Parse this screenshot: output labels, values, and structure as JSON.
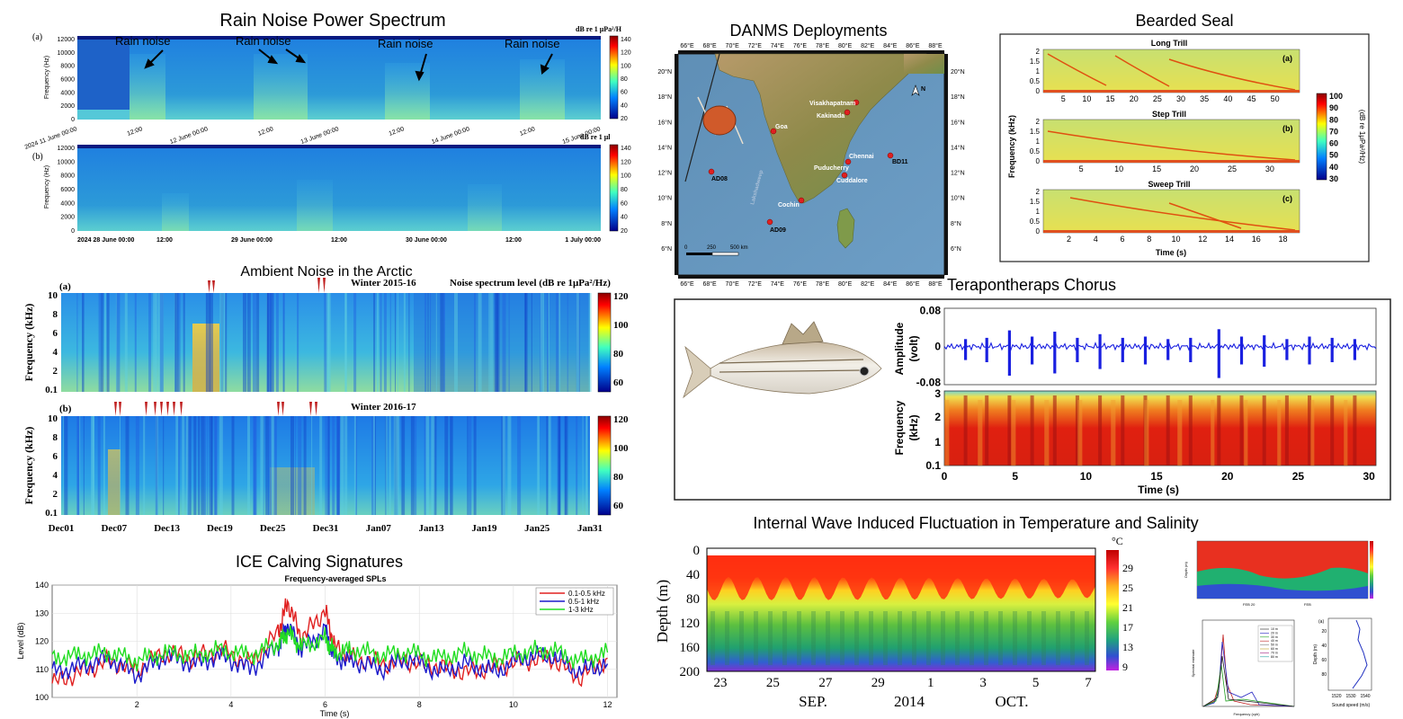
{
  "panels": {
    "rain": {
      "title": "Rain Noise Power Spectrum",
      "a_label": "(a)",
      "b_label": "(b)",
      "cbar_a": "dB re 1 μPa²/H",
      "cbar_b": "dB re 1 μl",
      "ylabel": "Frequency (Hz)",
      "annotation": "Rain noise",
      "yticks": [
        "12000",
        "10000",
        "8000",
        "6000",
        "4000",
        "2000",
        "0"
      ],
      "cticks": [
        "140",
        "120",
        "100",
        "80",
        "60",
        "40",
        "20"
      ],
      "xticks_a": [
        "2024 11 June 00:00",
        "12:00",
        "12 June 00:00",
        "12:00",
        "13 June 00:00",
        "12:00",
        "14 June 00:00",
        "12:00",
        "15 June 00:00"
      ],
      "xticks_b": [
        "2024 28 June 00:00",
        "12:00",
        "29 June 00:00",
        "12:00",
        "30 June 00:00",
        "12:00",
        "1 July 00:00"
      ]
    },
    "arctic": {
      "title": "Ambient Noise in the Arctic",
      "a_label": "(a)",
      "b_label": "(b)",
      "winter_a": "Winter 2015-16",
      "winter_b": "Winter 2016-17",
      "cbar_label": "Noise spectrum level (dB re 1μPa²/Hz)",
      "ylabel": "Frequency (kHz)",
      "yticks": [
        "10",
        "8",
        "6",
        "4",
        "2",
        "0.1"
      ],
      "cticks": [
        "120",
        "100",
        "80",
        "60"
      ],
      "xticks": [
        "Dec01",
        "Dec07",
        "Dec13",
        "Dec19",
        "Dec25",
        "Dec31",
        "Jan07",
        "Jan13",
        "Jan19",
        "Jan25",
        "Jan31"
      ]
    },
    "ice": {
      "title": "ICE Calving Signatures",
      "chart_title": "Frequency-averaged SPLs",
      "ylabel": "Level (dB)",
      "xlabel": "Time (s)",
      "yticks": [
        "140",
        "130",
        "120",
        "110",
        "100"
      ],
      "xticks": [
        "2",
        "4",
        "6",
        "8",
        "10",
        "12"
      ],
      "legend": [
        "0.1-0.5 kHz",
        "0.5-1 kHz",
        "1-3 kHz"
      ]
    },
    "danms": {
      "title": "DANMS Deployments",
      "lon_ticks": [
        "66°E",
        "68°E",
        "70°E",
        "72°E",
        "74°E",
        "76°E",
        "78°E",
        "80°E",
        "82°E",
        "84°E",
        "86°E",
        "88°E"
      ],
      "lat_ticks": [
        "20°N",
        "18°N",
        "16°N",
        "14°N",
        "12°N",
        "10°N",
        "8°N",
        "6°N"
      ],
      "places": [
        "Goa",
        "Visakhapatnam",
        "Kakinada",
        "Chennai",
        "Puducherry",
        "Cuddalore",
        "BD11",
        "AD08",
        "Cochin",
        "AD09",
        "Lakshadweep"
      ],
      "scale": [
        "0",
        "250",
        "500 km"
      ],
      "north": "N"
    },
    "seal": {
      "title": "Bearded Seal",
      "sub": [
        "Long Trill",
        "Step Trill",
        "Sweep Trill"
      ],
      "tags": [
        "(a)",
        "(b)",
        "(c)"
      ],
      "yticks": [
        "2",
        "1.5",
        "1",
        "0.5",
        "0"
      ],
      "xticks_a": [
        "5",
        "10",
        "15",
        "20",
        "25",
        "30",
        "35",
        "40",
        "45",
        "50"
      ],
      "xticks_b": [
        "5",
        "10",
        "15",
        "20",
        "25",
        "30"
      ],
      "xticks_c": [
        "2",
        "4",
        "6",
        "8",
        "10",
        "12",
        "14",
        "16",
        "18"
      ],
      "ylabel": "Frequency (kHz)",
      "xlabel": "Time (s)",
      "cbar_label": "(dB re 1μPa²/Hz)",
      "cticks": [
        "100",
        "90",
        "80",
        "70",
        "60",
        "50",
        "40",
        "30"
      ]
    },
    "fish": {
      "title": "Terapontheraps Chorus",
      "amp_label": "Amplitude (volt)",
      "amp_l1": "Amplitude",
      "amp_l2": "(volt)",
      "freq_l1": "Frequency",
      "freq_l2": "(kHz)",
      "amp_ticks": [
        "0.08",
        "0",
        "-0.08"
      ],
      "freq_ticks": [
        "3",
        "2",
        "1",
        "0.1"
      ],
      "xticks": [
        "0",
        "5",
        "10",
        "15",
        "20",
        "25",
        "30"
      ],
      "xlabel": "Time (s)"
    },
    "wave": {
      "title": "Internal Wave Induced Fluctuation in Temperature and Salinity",
      "ylabel": "Depth (m)",
      "yticks": [
        "0",
        "40",
        "80",
        "120",
        "160",
        "200"
      ],
      "xticks": [
        "23",
        "25",
        "27",
        "29",
        "1",
        "3",
        "5",
        "7"
      ],
      "months": [
        "SEP.",
        "2014",
        "OCT."
      ],
      "unit": "°C",
      "cticks": [
        "29",
        "25",
        "21",
        "17",
        "13",
        "9"
      ]
    },
    "mini": {
      "depth_label": "Depth (m)",
      "sound_label": "Sound speed (m/s)",
      "spec_label": "Spectral estimate",
      "freq_label": "Frequency (cph)",
      "feb": [
        "FEB 20",
        "FEB"
      ],
      "legend": [
        "10 m",
        "20 m",
        "30 m",
        "40 m",
        "50 m",
        "60 m",
        "70 m",
        "80 m"
      ],
      "sound_ticks": [
        "1520",
        "1530",
        "1540"
      ],
      "depth_ticks": [
        "20",
        "40",
        "60",
        "80"
      ],
      "tag": "(a)"
    }
  },
  "chart_data": [
    {
      "type": "line",
      "title": "Frequency-averaged SPLs",
      "xlabel": "Time (s)",
      "ylabel": "Level (dB)",
      "xlim": [
        0.2,
        12.2
      ],
      "ylim": [
        100,
        140
      ],
      "series": [
        {
          "name": "0.1-0.5 kHz",
          "color": "#e02020",
          "x": [
            0.2,
            0.8,
            1.4,
            2.0,
            2.6,
            3.2,
            3.8,
            4.4,
            5.0,
            5.2,
            5.5,
            6.0,
            6.2,
            6.6,
            7.2,
            7.8,
            8.4,
            9.0,
            9.6,
            10.2,
            10.8,
            11.4,
            12.0
          ],
          "values": [
            105,
            109,
            113,
            110,
            116,
            114,
            117,
            112,
            123,
            134,
            121,
            131,
            118,
            114,
            112,
            113,
            111,
            109,
            111,
            113,
            114,
            107,
            114
          ]
        },
        {
          "name": "0.5-1 kHz",
          "color": "#1c1ccc",
          "x": [
            0.2,
            0.8,
            1.4,
            2.0,
            2.6,
            3.2,
            3.8,
            4.4,
            5.0,
            5.2,
            5.5,
            6.0,
            6.2,
            6.6,
            7.2,
            7.8,
            8.4,
            9.0,
            9.6,
            10.2,
            10.8,
            11.4,
            12.0
          ],
          "values": [
            109,
            111,
            114,
            108,
            115,
            112,
            115,
            110,
            118,
            126,
            117,
            124,
            114,
            113,
            110,
            114,
            109,
            112,
            109,
            114,
            115,
            109,
            112
          ]
        },
        {
          "name": "1-3 kHz",
          "color": "#22dd22",
          "x": [
            0.2,
            0.8,
            1.4,
            2.0,
            2.6,
            3.2,
            3.8,
            4.4,
            5.0,
            5.2,
            5.5,
            6.0,
            6.2,
            6.6,
            7.2,
            7.8,
            8.4,
            9.0,
            9.6,
            10.2,
            10.8,
            11.4,
            12.0
          ],
          "values": [
            114,
            115,
            116,
            113,
            116,
            115,
            117,
            115,
            119,
            123,
            118,
            121,
            116,
            117,
            115,
            116,
            114,
            116,
            114,
            116,
            117,
            113,
            116
          ]
        }
      ]
    },
    {
      "type": "line",
      "title": "Terapontheraps Chorus",
      "xlabel": "Time (s)",
      "ylabel": "Amplitude (volt)",
      "xlim": [
        0,
        30.5
      ],
      "ylim": [
        -0.08,
        0.08
      ],
      "burst_times": [
        1.5,
        3.0,
        4.6,
        6.2,
        7.8,
        9.4,
        11.0,
        12.6,
        14.2,
        15.8,
        17.4,
        19.4,
        21.0,
        22.6,
        24.2,
        25.8,
        27.4,
        29.0
      ],
      "burst_peaks": [
        0.03,
        0.035,
        0.065,
        0.04,
        0.06,
        0.035,
        0.05,
        0.035,
        0.04,
        0.03,
        0.035,
        0.07,
        0.04,
        0.045,
        0.03,
        0.04,
        0.035,
        0.03
      ]
    }
  ]
}
